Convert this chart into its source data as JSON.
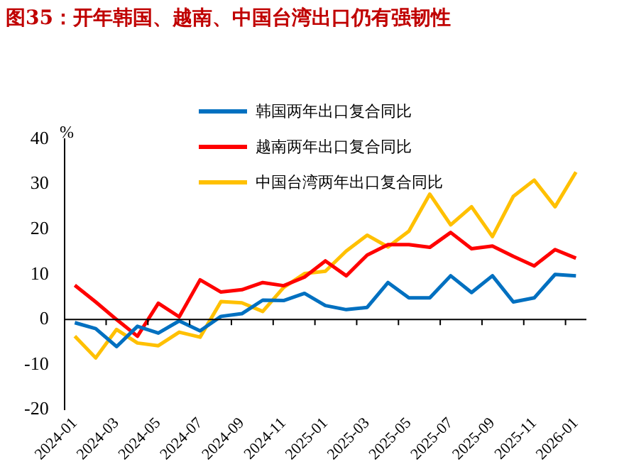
{
  "chart_data": {
    "type": "line",
    "title": "图35：开年韩国、越南、中国台湾出口仍有强韧性",
    "ylabel": "%",
    "categories": [
      "2024-01",
      null,
      "2024-03",
      null,
      "2024-05",
      null,
      "2024-07",
      null,
      "2024-09",
      null,
      "2024-11",
      null,
      "2025-01",
      null,
      "2025-03",
      null,
      "2025-05",
      null,
      "2025-07",
      null,
      "2025-09",
      null,
      "2025-11",
      null,
      "2026-01"
    ],
    "series": [
      {
        "name": "韩国两年出口复合同比",
        "color": "#0070c0",
        "values": [
          -0.7,
          -2,
          -6,
          -1.5,
          -3,
          -0.3,
          -2.5,
          0.7,
          1.3,
          4.3,
          4.2,
          5.8,
          3.1,
          2.2,
          2.7,
          8.2,
          4.8,
          4.8,
          9.7,
          6,
          9.7,
          3.9,
          4.8,
          10,
          9.7
        ]
      },
      {
        "name": "越南两年出口复合同比",
        "color": "#ff0000",
        "values": [
          7.6,
          3.9,
          0,
          -3.7,
          3.6,
          0.6,
          8.8,
          6.1,
          6.6,
          8.2,
          7.5,
          9.4,
          13,
          9.7,
          14.3,
          16.6,
          16.6,
          16,
          19.3,
          15.7,
          16.3,
          14,
          11.9,
          15.5,
          13.6
        ]
      },
      {
        "name": "中国台湾两年出口复合同比",
        "color": "#ffc000",
        "values": [
          -3.7,
          -8.5,
          -2.2,
          -5.2,
          -5.8,
          -2.8,
          -3.9,
          4,
          3.7,
          1.8,
          7.1,
          10.2,
          10.7,
          15.2,
          18.7,
          16.1,
          19.6,
          27.8,
          21,
          25,
          18.4,
          27.3,
          30.9,
          25,
          32.7
        ]
      }
    ],
    "ylim": [
      -20,
      40
    ],
    "yticks": [
      -20,
      -10,
      0,
      10,
      20,
      30,
      40
    ],
    "grid": false,
    "ref_lines": [
      {
        "axis": "y",
        "value": 0,
        "color": "#000000"
      }
    ],
    "legend": "top",
    "marker": "none",
    "line_style": "solid"
  }
}
